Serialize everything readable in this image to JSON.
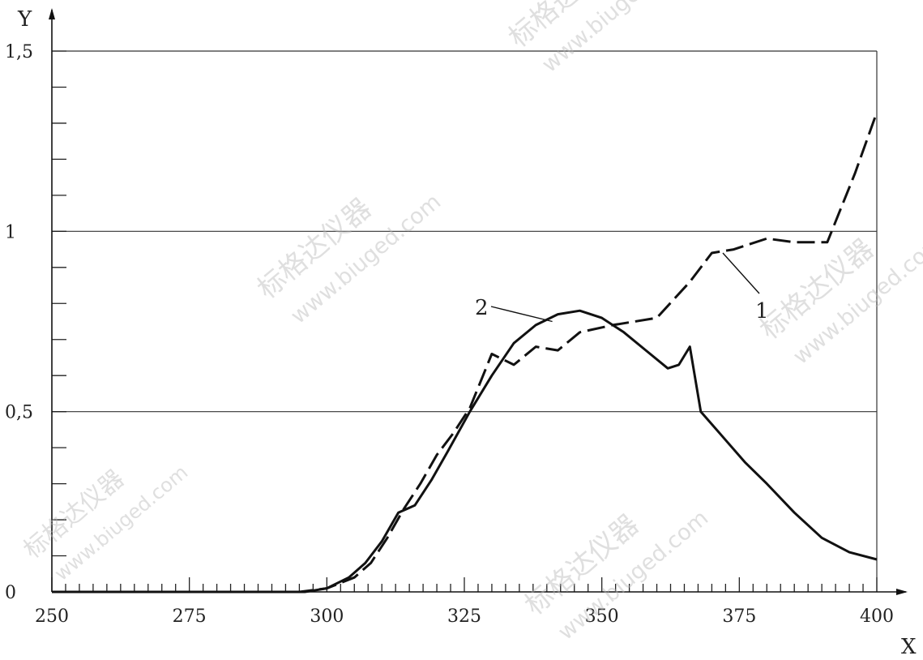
{
  "chart_data": {
    "type": "line",
    "xlabel": "X",
    "ylabel": "Y",
    "xlim": [
      250,
      400
    ],
    "ylim": [
      0,
      1.5
    ],
    "x_ticks": [
      250,
      275,
      300,
      325,
      350,
      375,
      400
    ],
    "x_tick_labels": [
      "250",
      "275",
      "300",
      "325",
      "350",
      "375",
      "400"
    ],
    "y_ticks": [
      0,
      0.5,
      1,
      1.5
    ],
    "y_tick_labels": [
      "0",
      "0,5",
      "1",
      "1,5"
    ],
    "x_minor_step": 2.5,
    "y_minor_step": 0.1,
    "grid": "horizontal at 0.5, 1 and 1.5",
    "series": [
      {
        "name": "1",
        "style": "dashed",
        "points": [
          [
            250,
            0
          ],
          [
            295,
            0
          ],
          [
            300,
            0.01
          ],
          [
            305,
            0.04
          ],
          [
            308,
            0.08
          ],
          [
            311,
            0.15
          ],
          [
            314,
            0.23
          ],
          [
            317,
            0.3
          ],
          [
            320,
            0.38
          ],
          [
            323,
            0.44
          ],
          [
            326,
            0.51
          ],
          [
            330,
            0.66
          ],
          [
            334,
            0.63
          ],
          [
            338,
            0.68
          ],
          [
            342,
            0.67
          ],
          [
            346,
            0.72
          ],
          [
            352,
            0.74
          ],
          [
            356,
            0.75
          ],
          [
            360,
            0.76
          ],
          [
            366,
            0.86
          ],
          [
            370,
            0.94
          ],
          [
            374,
            0.95
          ],
          [
            380,
            0.98
          ],
          [
            385,
            0.97
          ],
          [
            391,
            0.97
          ],
          [
            396,
            1.16
          ],
          [
            400,
            1.33
          ]
        ]
      },
      {
        "name": "2",
        "style": "solid",
        "points": [
          [
            250,
            0
          ],
          [
            296,
            0
          ],
          [
            300,
            0.01
          ],
          [
            304,
            0.04
          ],
          [
            307,
            0.08
          ],
          [
            310,
            0.14
          ],
          [
            313,
            0.22
          ],
          [
            316,
            0.24
          ],
          [
            319,
            0.31
          ],
          [
            322,
            0.39
          ],
          [
            326,
            0.5
          ],
          [
            330,
            0.6
          ],
          [
            334,
            0.69
          ],
          [
            338,
            0.74
          ],
          [
            342,
            0.77
          ],
          [
            346,
            0.78
          ],
          [
            350,
            0.76
          ],
          [
            354,
            0.72
          ],
          [
            358,
            0.67
          ],
          [
            362,
            0.62
          ],
          [
            364,
            0.63
          ],
          [
            366,
            0.68
          ],
          [
            368,
            0.5
          ],
          [
            372,
            0.43
          ],
          [
            376,
            0.36
          ],
          [
            380,
            0.3
          ],
          [
            385,
            0.22
          ],
          [
            390,
            0.15
          ],
          [
            395,
            0.11
          ],
          [
            400,
            0.09
          ]
        ]
      }
    ],
    "annotations": [
      {
        "text": "1",
        "series": "1",
        "at_x": 372,
        "at_y": 0.94
      },
      {
        "text": "2",
        "series": "2",
        "at_x": 341,
        "at_y": 0.75
      }
    ]
  },
  "watermark": {
    "lines": [
      "标格达仪器",
      "www.biuged.com"
    ],
    "color": "#b9b9b9"
  }
}
